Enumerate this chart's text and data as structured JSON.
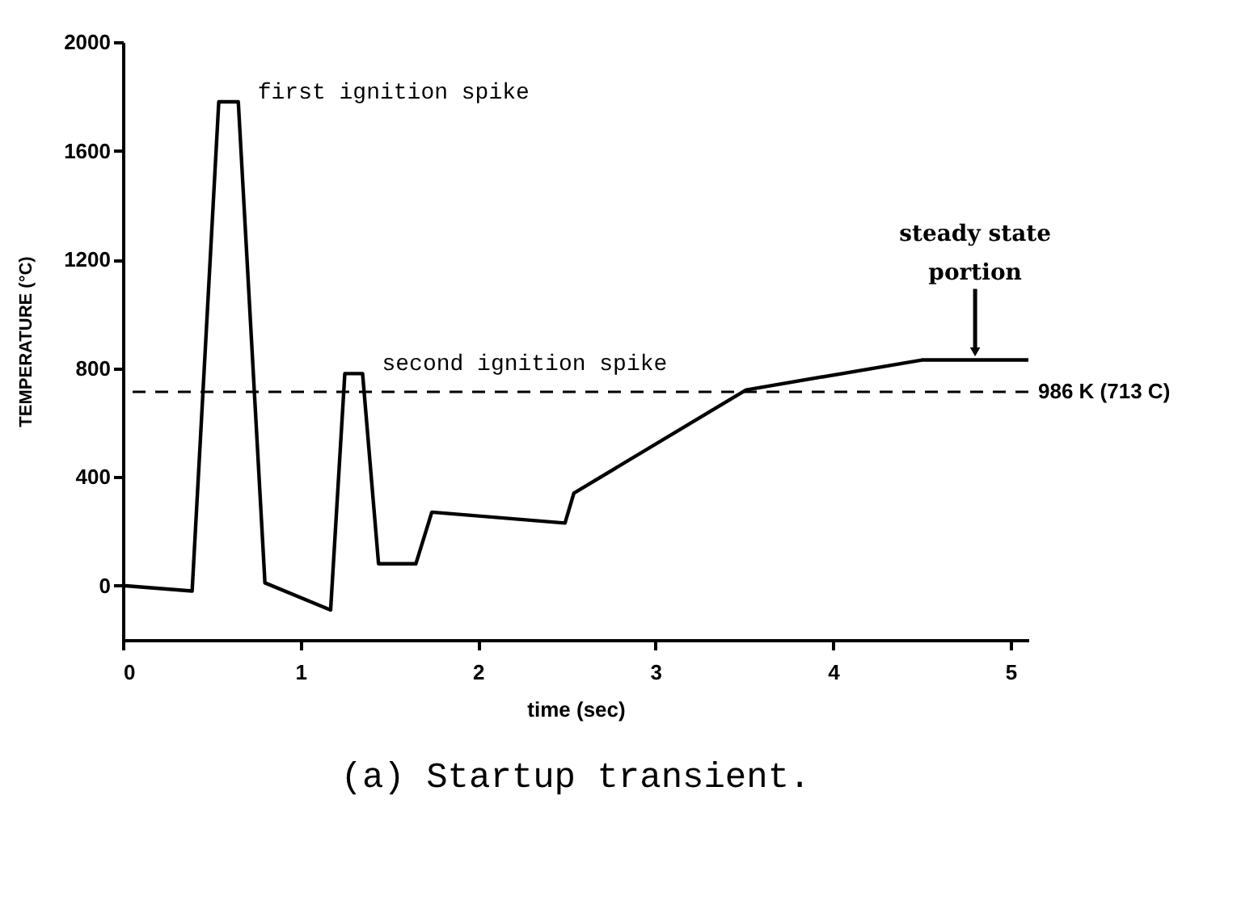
{
  "chart_data": {
    "type": "line",
    "title": "(a) Startup transient.",
    "xlabel": "time (sec)",
    "ylabel": "TEMPERATURE (°C)",
    "x": [
      0,
      0.39,
      0.54,
      0.65,
      0.8,
      1.17,
      1.25,
      1.35,
      1.44,
      1.65,
      1.74,
      2.49,
      2.54,
      3.51,
      4.5,
      5.1
    ],
    "series": [
      {
        "color": "#000000",
        "values": [
          0,
          -20,
          1780,
          1780,
          10,
          -90,
          780,
          780,
          80,
          80,
          270,
          230,
          340,
          720,
          830,
          830
        ]
      }
    ],
    "xlim": [
      0,
      5.1
    ],
    "xticks": [
      0,
      1,
      2,
      3,
      4,
      5
    ],
    "ylim": [
      -200,
      2000
    ],
    "yticks": [
      0,
      400,
      800,
      1200,
      1600,
      2000
    ],
    "grid": false,
    "marker": "none",
    "line_style": "solid",
    "ref_lines": [
      {
        "axis": "y",
        "value": 713,
        "label": "986 K (713 C)",
        "color": "#000000",
        "line_style": "dashed"
      }
    ],
    "annotations": [
      {
        "text": "first ignition spike",
        "x": 0.65,
        "y": 1780
      },
      {
        "text": "second ignition spike",
        "x": 1.35,
        "y": 780
      },
      {
        "text": "steady state\nportion",
        "x": 4.8,
        "y": 830
      }
    ]
  }
}
